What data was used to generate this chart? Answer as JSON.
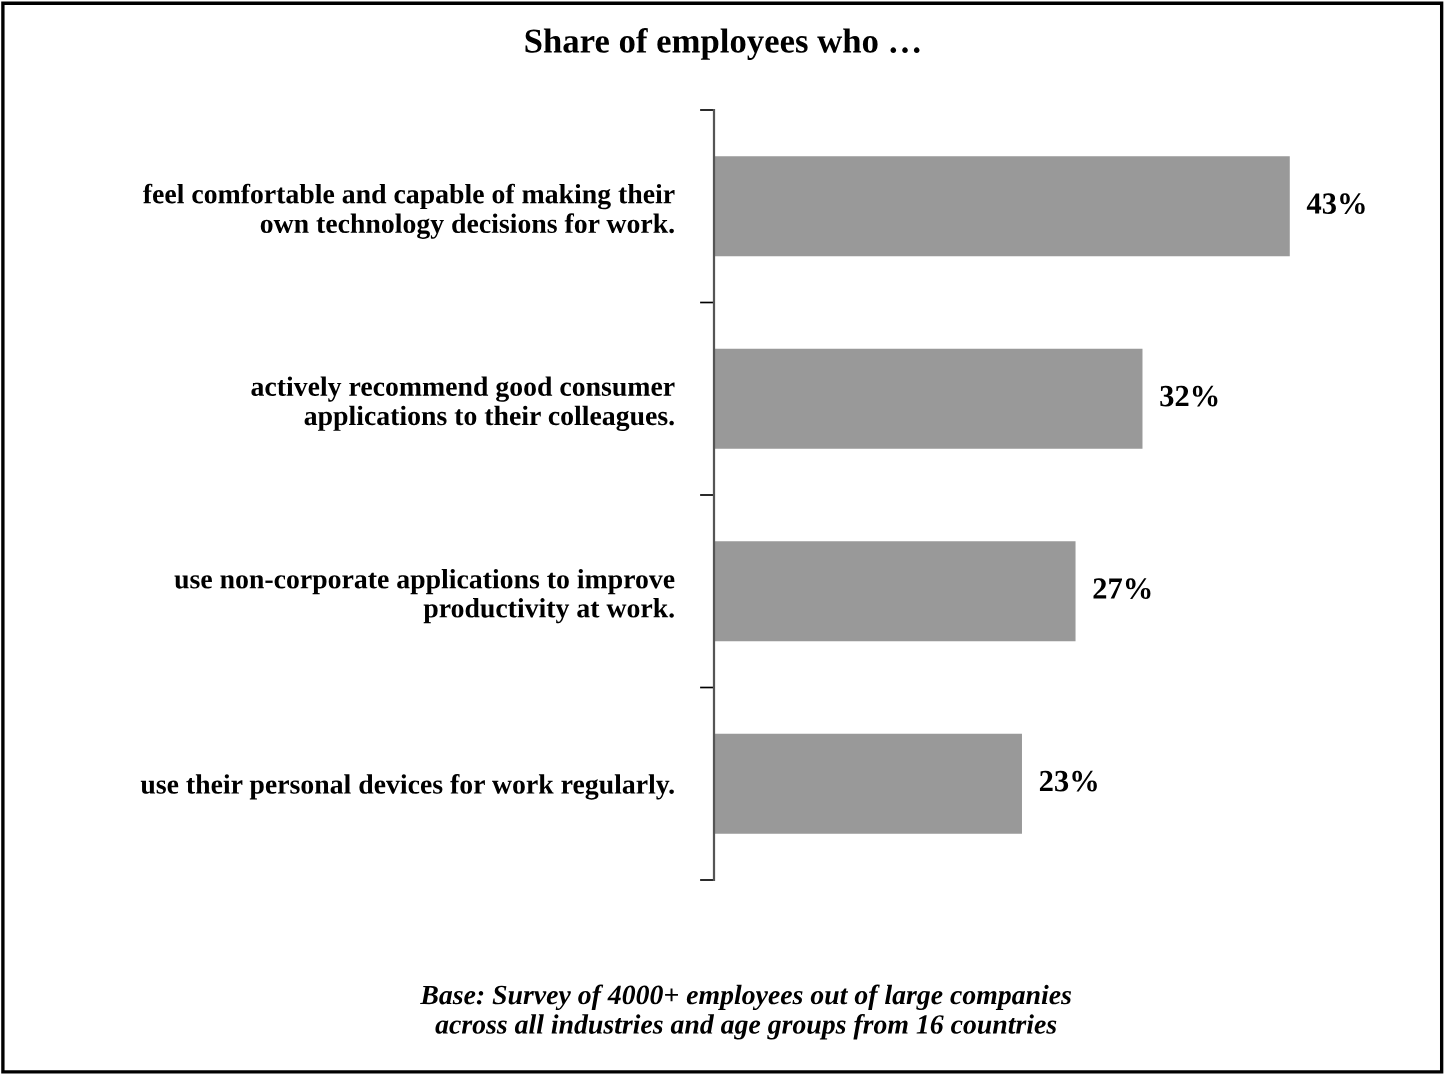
{
  "chart_data": {
    "type": "bar",
    "orientation": "horizontal",
    "title": "Share of employees who …",
    "categories": [
      "feel comfortable and capable of making their\nown technology decisions for work.",
      "actively recommend good consumer\napplications to their colleagues.",
      "use non-corporate applications to improve\nproductivity at work.",
      "use their personal devices for work regularly."
    ],
    "values": [
      43,
      32,
      27,
      23
    ],
    "color": "#999999",
    "value_labels": [
      "43%",
      "32%",
      "27%",
      "23%"
    ],
    "annotations": [
      "Base: Survey of 4000+ employees out of large companies\nacross all industries and age groups from 16 countries"
    ],
    "grid": false,
    "legend": false
  }
}
